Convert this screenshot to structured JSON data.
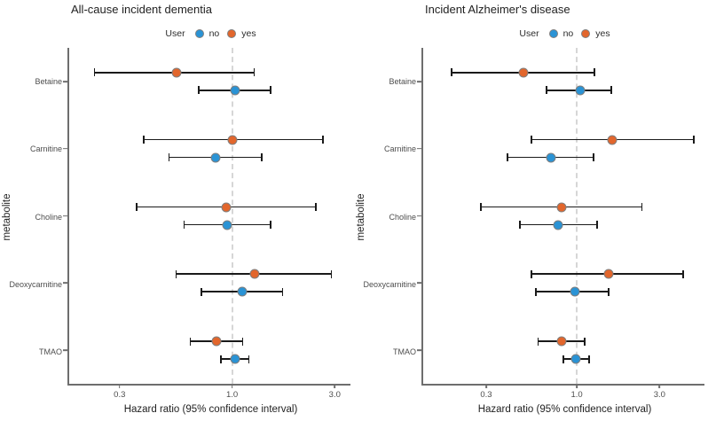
{
  "figure": {
    "xlabel": "Hazard ratio (95% confidence interval)",
    "ylabel": "metabolite",
    "legend": {
      "title": "User",
      "items": [
        {
          "label": "no",
          "color": "#2a93d5"
        },
        {
          "label": "yes",
          "color": "#e2662c"
        }
      ]
    },
    "colors": {
      "no": "#2a93d5",
      "yes": "#e2662c",
      "point_ring": "#7f7f7f",
      "error_bar": "#1a1a1a",
      "reference_line": "#d6d6d6",
      "axis": "#6e6e6e",
      "tick_text": "#4d4d4d"
    }
  },
  "chart_data": [
    {
      "type": "scatter",
      "subtype": "forest-plot-with-error-bars",
      "title": "All-cause incident dementia",
      "xlabel": "Hazard ratio (95% confidence interval)",
      "ylabel": "metabolite",
      "x_scale": "log",
      "xlim": [
        0.175,
        3.55
      ],
      "x_ticks": [
        0.3,
        1.0,
        3.0
      ],
      "x_tick_labels": [
        "0.3",
        "1.0",
        "3.0"
      ],
      "reference_line_x": 1.0,
      "grid": false,
      "legend_position": "top",
      "categories": [
        "Betaine",
        "Carnitine",
        "Choline",
        "Deoxycarnitine",
        "TMAO"
      ],
      "series": [
        {
          "name": "yes",
          "color": "#e2662c",
          "values": [
            {
              "hr": 0.55,
              "lo": 0.23,
              "hi": 1.27
            },
            {
              "hr": 1.0,
              "lo": 0.39,
              "hi": 2.65
            },
            {
              "hr": 0.94,
              "lo": 0.36,
              "hi": 2.45
            },
            {
              "hr": 1.27,
              "lo": 0.55,
              "hi": 2.9
            },
            {
              "hr": 0.85,
              "lo": 0.64,
              "hi": 1.12
            }
          ]
        },
        {
          "name": "no",
          "color": "#2a93d5",
          "values": [
            {
              "hr": 1.03,
              "lo": 0.7,
              "hi": 1.51
            },
            {
              "hr": 0.84,
              "lo": 0.51,
              "hi": 1.38
            },
            {
              "hr": 0.95,
              "lo": 0.6,
              "hi": 1.51
            },
            {
              "hr": 1.11,
              "lo": 0.72,
              "hi": 1.72
            },
            {
              "hr": 1.03,
              "lo": 0.89,
              "hi": 1.2
            }
          ]
        }
      ]
    },
    {
      "type": "scatter",
      "subtype": "forest-plot-with-error-bars",
      "title": "Incident Alzheimer's disease",
      "xlabel": "Hazard ratio (95% confidence interval)",
      "ylabel": "metabolite",
      "x_scale": "log",
      "xlim": [
        0.13,
        5.45
      ],
      "x_ticks": [
        0.3,
        1.0,
        3.0
      ],
      "x_tick_labels": [
        "0.3",
        "1.0",
        "3.0"
      ],
      "reference_line_x": 1.0,
      "grid": false,
      "legend_position": "top",
      "categories": [
        "Betaine",
        "Carnitine",
        "Choline",
        "Deoxycarnitine",
        "TMAO"
      ],
      "series": [
        {
          "name": "yes",
          "color": "#e2662c",
          "values": [
            {
              "hr": 0.49,
              "lo": 0.19,
              "hi": 1.27
            },
            {
              "hr": 1.6,
              "lo": 0.55,
              "hi": 4.75
            },
            {
              "hr": 0.82,
              "lo": 0.28,
              "hi": 2.38
            },
            {
              "hr": 1.52,
              "lo": 0.55,
              "hi": 4.1
            },
            {
              "hr": 0.82,
              "lo": 0.6,
              "hi": 1.11
            }
          ]
        },
        {
          "name": "no",
          "color": "#2a93d5",
          "values": [
            {
              "hr": 1.05,
              "lo": 0.67,
              "hi": 1.58
            },
            {
              "hr": 0.71,
              "lo": 0.4,
              "hi": 1.25
            },
            {
              "hr": 0.78,
              "lo": 0.47,
              "hi": 1.31
            },
            {
              "hr": 0.98,
              "lo": 0.58,
              "hi": 1.53
            },
            {
              "hr": 0.99,
              "lo": 0.84,
              "hi": 1.18
            }
          ]
        }
      ]
    }
  ]
}
